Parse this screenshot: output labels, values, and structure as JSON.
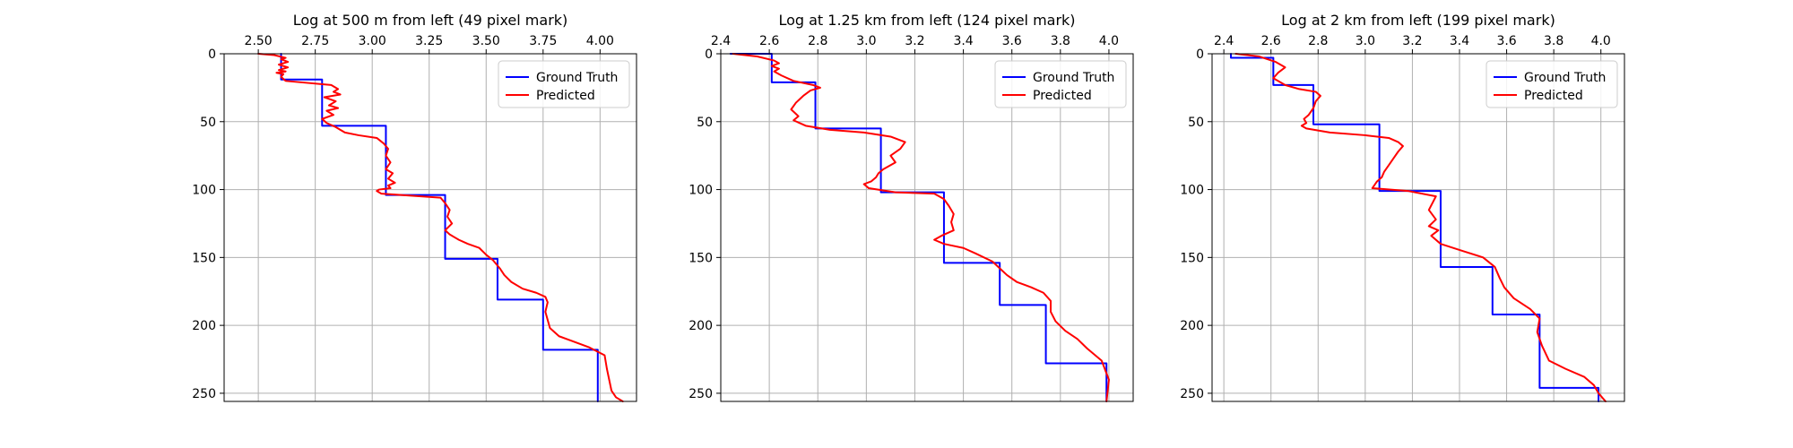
{
  "chart_data": [
    {
      "type": "line",
      "title": "Log at 500 m from left (49 pixel mark)",
      "xlabel": "",
      "ylabel": "",
      "xlim": [
        2.35,
        4.16
      ],
      "ylim": [
        256,
        0
      ],
      "xticks": [
        2.5,
        2.75,
        3.0,
        3.25,
        3.5,
        3.75,
        4.0
      ],
      "xtick_labels": [
        "2.50",
        "2.75",
        "3.00",
        "3.25",
        "3.50",
        "3.75",
        "4.00"
      ],
      "yticks": [
        0,
        50,
        100,
        150,
        200,
        250
      ],
      "ytick_labels": [
        "0",
        "50",
        "100",
        "150",
        "200",
        "250"
      ],
      "x_axis_position": "top",
      "y_axis_inverted": true,
      "grid": true,
      "legend_position": "top-right",
      "series": [
        {
          "name": "Ground Truth",
          "color": "#0000ff",
          "x": [
            2.6,
            2.6,
            2.78,
            2.78,
            3.06,
            3.06,
            3.32,
            3.32,
            3.55,
            3.55,
            3.75,
            3.75,
            3.99,
            3.99
          ],
          "y": [
            0,
            19,
            19,
            53,
            53,
            104,
            104,
            151,
            151,
            181,
            181,
            218,
            218,
            256
          ]
        },
        {
          "name": "Predicted",
          "color": "#ff0000",
          "x": [
            2.5,
            2.57,
            2.62,
            2.6,
            2.63,
            2.59,
            2.63,
            2.59,
            2.62,
            2.58,
            2.61,
            2.6,
            2.62,
            2.82,
            2.85,
            2.83,
            2.86,
            2.79,
            2.84,
            2.81,
            2.85,
            2.8,
            2.83,
            2.78,
            2.8,
            2.84,
            2.88,
            2.94,
            3.02,
            3.05,
            3.07,
            3.06,
            3.08,
            3.06,
            3.09,
            3.07,
            3.1,
            3.07,
            3.08,
            3.03,
            3.02,
            3.04,
            3.3,
            3.32,
            3.34,
            3.33,
            3.35,
            3.32,
            3.34,
            3.38,
            3.42,
            3.47,
            3.5,
            3.53,
            3.56,
            3.58,
            3.61,
            3.66,
            3.72,
            3.76,
            3.77,
            3.76,
            3.77,
            3.78,
            3.82,
            3.95,
            4.02,
            4.03,
            4.04,
            4.05,
            4.07,
            4.1
          ],
          "y": [
            0,
            1,
            3,
            4,
            6,
            8,
            10,
            12,
            13,
            14,
            15,
            17,
            20,
            23,
            26,
            28,
            30,
            32,
            35,
            38,
            40,
            42,
            45,
            48,
            51,
            54,
            58,
            60,
            62,
            66,
            70,
            75,
            80,
            85,
            88,
            92,
            95,
            97,
            99,
            100,
            101,
            103,
            106,
            110,
            115,
            120,
            125,
            130,
            133,
            137,
            140,
            143,
            148,
            152,
            158,
            163,
            168,
            173,
            176,
            179,
            183,
            190,
            196,
            202,
            208,
            216,
            222,
            232,
            240,
            248,
            253,
            256
          ]
        }
      ]
    },
    {
      "type": "line",
      "title": "Log at 1.25 km from left (124 pixel mark)",
      "xlabel": "",
      "ylabel": "",
      "xlim": [
        2.4,
        4.1
      ],
      "ylim": [
        256,
        0
      ],
      "xticks": [
        2.4,
        2.6,
        2.8,
        3.0,
        3.2,
        3.4,
        3.6,
        3.8,
        4.0
      ],
      "xtick_labels": [
        "2.4",
        "2.6",
        "2.8",
        "3.0",
        "3.2",
        "3.4",
        "3.6",
        "3.8",
        "4.0"
      ],
      "yticks": [
        0,
        50,
        100,
        150,
        200,
        250
      ],
      "ytick_labels": [
        "0",
        "50",
        "100",
        "150",
        "200",
        "250"
      ],
      "x_axis_position": "top",
      "y_axis_inverted": true,
      "grid": true,
      "legend_position": "top-right",
      "series": [
        {
          "name": "Ground Truth",
          "color": "#0000ff",
          "x": [
            2.44,
            2.61,
            2.61,
            2.79,
            2.79,
            3.06,
            3.06,
            3.32,
            3.32,
            3.55,
            3.55,
            3.74,
            3.74,
            3.99,
            3.99
          ],
          "y": [
            0,
            0,
            21,
            21,
            55,
            55,
            102,
            102,
            154,
            154,
            185,
            185,
            228,
            228,
            256
          ]
        },
        {
          "name": "Predicted",
          "color": "#ff0000",
          "x": [
            2.45,
            2.55,
            2.62,
            2.64,
            2.61,
            2.64,
            2.62,
            2.65,
            2.7,
            2.78,
            2.81,
            2.77,
            2.74,
            2.71,
            2.69,
            2.72,
            2.7,
            2.75,
            2.85,
            2.99,
            3.1,
            3.16,
            3.14,
            3.1,
            3.12,
            3.07,
            3.05,
            3.04,
            3.02,
            2.99,
            3.01,
            3.12,
            3.28,
            3.32,
            3.34,
            3.36,
            3.35,
            3.36,
            3.31,
            3.28,
            3.32,
            3.4,
            3.45,
            3.52,
            3.55,
            3.58,
            3.62,
            3.68,
            3.73,
            3.76,
            3.76,
            3.78,
            3.82,
            3.87,
            3.91,
            3.97,
            4.0,
            3.99
          ],
          "y": [
            0,
            2,
            5,
            7,
            9,
            11,
            13,
            16,
            20,
            23,
            25,
            27,
            31,
            36,
            41,
            46,
            49,
            53,
            56,
            58,
            61,
            65,
            70,
            75,
            80,
            85,
            88,
            91,
            94,
            96,
            99,
            102,
            103,
            107,
            112,
            118,
            124,
            130,
            134,
            137,
            140,
            143,
            147,
            153,
            158,
            163,
            168,
            172,
            176,
            182,
            190,
            197,
            204,
            210,
            217,
            226,
            240,
            256
          ]
        }
      ]
    },
    {
      "type": "line",
      "title": "Log at 2 km from left (199 pixel mark)",
      "xlabel": "",
      "ylabel": "",
      "xlim": [
        2.35,
        4.1
      ],
      "ylim": [
        256,
        0
      ],
      "xticks": [
        2.4,
        2.6,
        2.8,
        3.0,
        3.2,
        3.4,
        3.6,
        3.8,
        4.0
      ],
      "xtick_labels": [
        "2.4",
        "2.6",
        "2.8",
        "3.0",
        "3.2",
        "3.4",
        "3.6",
        "3.8",
        "4.0"
      ],
      "yticks": [
        0,
        50,
        100,
        150,
        200,
        250
      ],
      "ytick_labels": [
        "0",
        "50",
        "100",
        "150",
        "200",
        "250"
      ],
      "x_axis_position": "top",
      "y_axis_inverted": true,
      "grid": true,
      "legend_position": "top-right",
      "series": [
        {
          "name": "Ground Truth",
          "color": "#0000ff",
          "x": [
            2.43,
            2.43,
            2.61,
            2.61,
            2.78,
            2.78,
            3.06,
            3.06,
            3.32,
            3.32,
            3.54,
            3.54,
            3.74,
            3.74,
            3.99,
            3.99
          ],
          "y": [
            0,
            3,
            3,
            23,
            23,
            52,
            52,
            101,
            101,
            157,
            157,
            192,
            192,
            246,
            246,
            256
          ]
        },
        {
          "name": "Predicted",
          "color": "#ff0000",
          "x": [
            2.45,
            2.55,
            2.62,
            2.66,
            2.63,
            2.61,
            2.66,
            2.72,
            2.79,
            2.81,
            2.79,
            2.78,
            2.76,
            2.74,
            2.75,
            2.73,
            2.75,
            2.85,
            3.0,
            3.1,
            3.14,
            3.16,
            3.14,
            3.12,
            3.1,
            3.08,
            3.07,
            3.05,
            3.03,
            3.18,
            3.3,
            3.27,
            3.3,
            3.27,
            3.31,
            3.28,
            3.32,
            3.41,
            3.5,
            3.55,
            3.57,
            3.59,
            3.63,
            3.7,
            3.74,
            3.73,
            3.75,
            3.78,
            3.85,
            3.93,
            3.97,
            3.99,
            4.02
          ],
          "y": [
            0,
            2,
            6,
            10,
            14,
            18,
            23,
            26,
            28,
            31,
            35,
            40,
            45,
            48,
            51,
            53,
            55,
            58,
            60,
            62,
            65,
            68,
            72,
            77,
            82,
            87,
            91,
            94,
            99,
            101,
            105,
            115,
            122,
            127,
            130,
            134,
            140,
            145,
            150,
            157,
            165,
            172,
            180,
            188,
            195,
            205,
            215,
            226,
            232,
            238,
            244,
            250,
            256
          ]
        }
      ]
    }
  ]
}
